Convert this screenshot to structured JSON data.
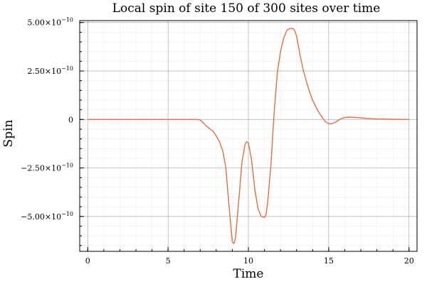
{
  "chart_data": {
    "type": "line",
    "title": "Local spin of site 150 of 300 sites over time",
    "xlabel": "Time",
    "ylabel": "Spin",
    "xlim": [
      -0.5,
      20.5
    ],
    "ylim": [
      -6.8e-10,
      5.1e-10
    ],
    "x_ticks": [
      {
        "value": 0,
        "label": "0"
      },
      {
        "value": 5,
        "label": "5"
      },
      {
        "value": 10,
        "label": "10"
      },
      {
        "value": 15,
        "label": "15"
      },
      {
        "value": 20,
        "label": "20"
      }
    ],
    "y_ticks": [
      {
        "value": 5e-10,
        "mantissa": "5.00",
        "times": "×10",
        "exponent": "−10"
      },
      {
        "value": 2.5e-10,
        "mantissa": "2.50",
        "times": "×10",
        "exponent": "−10"
      },
      {
        "value": 0,
        "mantissa": "0",
        "times": "",
        "exponent": ""
      },
      {
        "value": -2.5e-10,
        "mantissa": "−2.50",
        "times": "×10",
        "exponent": "−10"
      },
      {
        "value": -5e-10,
        "mantissa": "−5.00",
        "times": "×10",
        "exponent": "−10"
      }
    ],
    "grid": true,
    "legend": "none",
    "series_color": "#e26f46",
    "series": [
      {
        "x": [
          0,
          1,
          2,
          3,
          4,
          5,
          6,
          6.8,
          7.0,
          7.2,
          7.4,
          7.6,
          7.8,
          8.0,
          8.2,
          8.4,
          8.6,
          8.8,
          9.0,
          9.1,
          9.2,
          9.4,
          9.6,
          9.8,
          9.9,
          10.0,
          10.2,
          10.4,
          10.6,
          10.8,
          11.0,
          11.1,
          11.2,
          11.4,
          11.6,
          11.8,
          12.0,
          12.2,
          12.4,
          12.6,
          12.8,
          12.9,
          13.0,
          13.2,
          13.4,
          13.6,
          13.8,
          14.0,
          14.2,
          14.4,
          14.6,
          14.8,
          15.0,
          15.2,
          15.4,
          15.6,
          15.8,
          16.0,
          16.2,
          16.6,
          17.0,
          17.5,
          18.0,
          19.0,
          20.0
        ],
        "y": [
          0,
          0,
          0,
          0,
          0,
          0,
          0,
          0,
          -2e-12,
          -1.8e-11,
          -3.5e-11,
          -4.8e-11,
          -6e-11,
          -8.5e-11,
          -1.15e-10,
          -1.6e-10,
          -2.5e-10,
          -4.5e-10,
          -6.3e-10,
          -6.4e-10,
          -6.1e-10,
          -4.2e-10,
          -2.2e-10,
          -1.25e-10,
          -1.15e-10,
          -1.2e-10,
          -2.1e-10,
          -3.6e-10,
          -4.6e-10,
          -5e-10,
          -5.05e-10,
          -4.9e-10,
          -4.3e-10,
          -2.4e-10,
          3e-11,
          2.4e-10,
          3.5e-10,
          4.2e-10,
          4.6e-10,
          4.7e-10,
          4.68e-10,
          4.55e-10,
          4.3e-10,
          3.4e-10,
          2.6e-10,
          2e-10,
          1.45e-10,
          1e-10,
          6.5e-11,
          3.5e-11,
          1e-11,
          -1.2e-11,
          -2.2e-11,
          -2.2e-11,
          -1.5e-11,
          -5e-12,
          5e-12,
          1e-11,
          1.2e-11,
          1.1e-11,
          8e-12,
          5e-12,
          3e-12,
          1e-12,
          0
        ]
      }
    ]
  }
}
